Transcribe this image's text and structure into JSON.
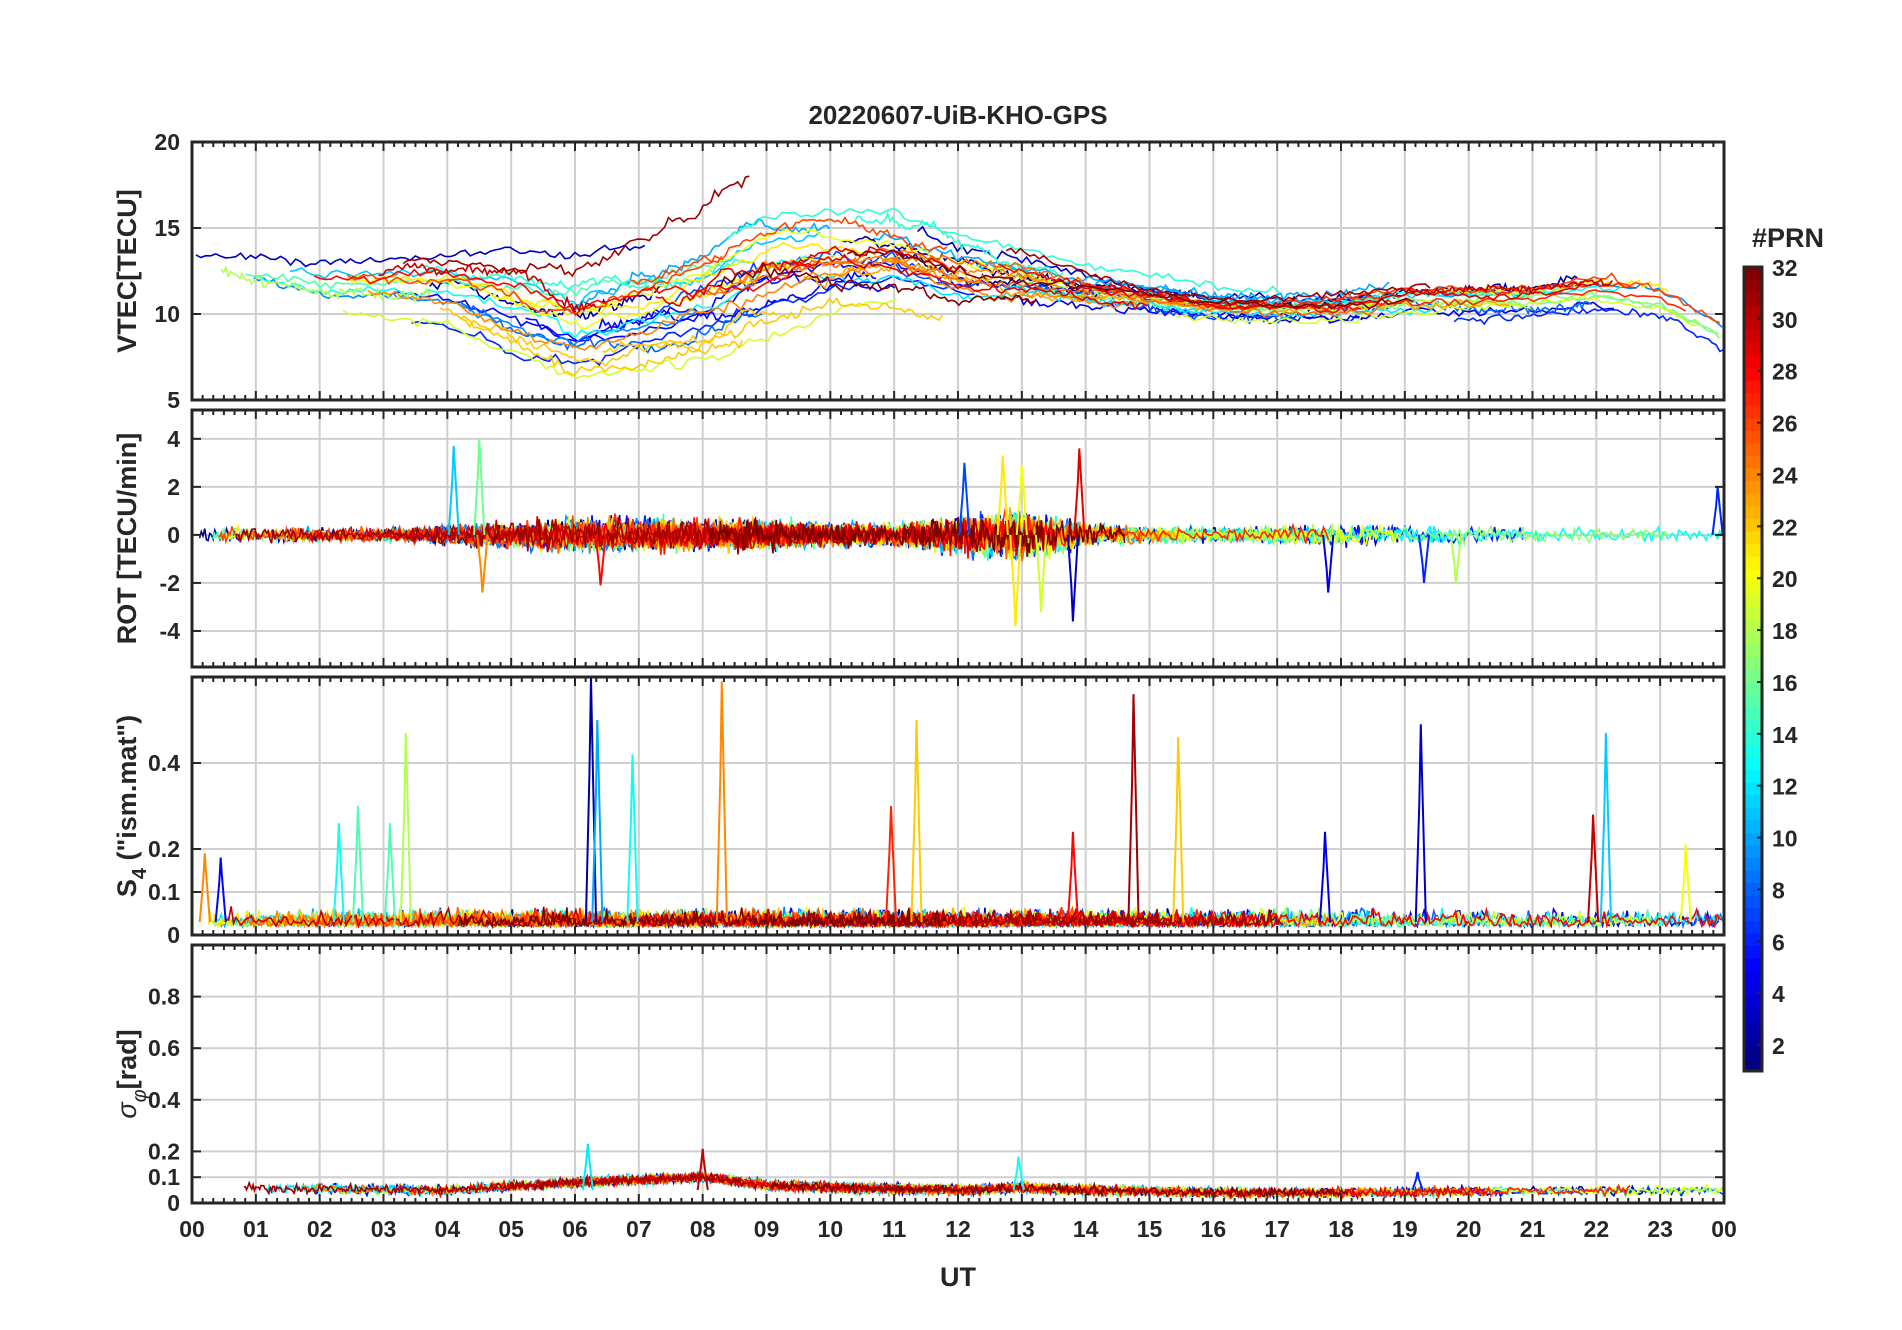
{
  "chart_data": {
    "type": "line",
    "title": "20220607-UiB-KHO-GPS",
    "xlabel": "UT",
    "x_tick_labels": [
      "00",
      "01",
      "02",
      "03",
      "04",
      "05",
      "06",
      "07",
      "08",
      "09",
      "10",
      "11",
      "12",
      "13",
      "14",
      "15",
      "16",
      "17",
      "18",
      "19",
      "20",
      "21",
      "22",
      "23",
      "00"
    ],
    "xlim_hours": [
      0,
      24
    ],
    "panels": [
      {
        "name": "vtec",
        "ylabel": "VTEC[TECU]",
        "ylim": [
          5,
          20
        ],
        "yticks": [
          5,
          10,
          15,
          20
        ],
        "ytick_labels": [
          "5",
          "10",
          "15",
          "20"
        ],
        "series_profile": {
          "times_h": [
            0,
            2,
            4,
            5,
            6,
            7,
            8,
            9,
            10,
            11,
            12,
            13,
            14,
            15,
            16,
            17,
            18,
            19,
            20,
            21,
            22,
            23,
            24
          ],
          "level": [
            12.5,
            11.5,
            11.5,
            10.5,
            9.5,
            10.5,
            11.5,
            13,
            13.5,
            13.5,
            12.5,
            12,
            11.5,
            11,
            10.5,
            10.5,
            10.5,
            11,
            11,
            11,
            11.5,
            11,
            9
          ],
          "spread": [
            1.5,
            2,
            2,
            3,
            3.5,
            4,
            4,
            4,
            3.5,
            3,
            2.5,
            2,
            1.5,
            1.2,
            1,
            1,
            1.2,
            1.3,
            1.2,
            1,
            1.2,
            1.2,
            1.2
          ],
          "noise": 0.5
        }
      },
      {
        "name": "rot",
        "ylabel": "ROT [TECU/min]",
        "ylim": [
          -5.5,
          5.2
        ],
        "yticks": [
          -4,
          -2,
          0,
          2,
          4
        ],
        "ytick_labels": [
          "-4",
          "-2",
          "0",
          "2",
          "4"
        ],
        "series_profile": {
          "times_h": [
            0,
            3,
            6,
            9,
            11,
            12,
            13,
            14,
            15,
            16,
            18,
            20,
            22,
            24
          ],
          "amplitude": [
            0.4,
            0.3,
            0.8,
            0.7,
            0.5,
            0.9,
            1.2,
            0.5,
            0.4,
            0.3,
            0.5,
            0.4,
            0.3,
            0.3
          ],
          "spikes": [
            {
              "t": 4.1,
              "v": 3.7,
              "prn": 11
            },
            {
              "t": 4.5,
              "v": 4.0,
              "prn": 16
            },
            {
              "t": 4.55,
              "v": -2.4,
              "prn": 24
            },
            {
              "t": 6.4,
              "v": -2.1,
              "prn": 28
            },
            {
              "t": 12.1,
              "v": 3.0,
              "prn": 7
            },
            {
              "t": 12.7,
              "v": 3.3,
              "prn": 21
            },
            {
              "t": 12.9,
              "v": -3.8,
              "prn": 21
            },
            {
              "t": 13.0,
              "v": 2.9,
              "prn": 20
            },
            {
              "t": 13.3,
              "v": -3.2,
              "prn": 19
            },
            {
              "t": 13.8,
              "v": -3.6,
              "prn": 3
            },
            {
              "t": 13.9,
              "v": 3.6,
              "prn": 29
            },
            {
              "t": 17.8,
              "v": -2.4,
              "prn": 4
            },
            {
              "t": 19.3,
              "v": -2.0,
              "prn": 6
            },
            {
              "t": 19.8,
              "v": -2.0,
              "prn": 18
            },
            {
              "t": 23.9,
              "v": 2.0,
              "prn": 6
            }
          ]
        }
      },
      {
        "name": "s4",
        "ylabel": "S4 (\"ism.mat\")",
        "ylabel_parts": [
          "S",
          "4",
          " (\"ism.mat\")"
        ],
        "ylim": [
          0,
          0.6
        ],
        "yticks": [
          0,
          0.1,
          0.2,
          0.4
        ],
        "ytick_labels": [
          "0",
          "0.1",
          "0.2",
          "0.4"
        ],
        "series_profile": {
          "baseline": 0.03,
          "noise": 0.035,
          "spikes": [
            {
              "t": 0.2,
              "v": 0.19,
              "prn": 24
            },
            {
              "t": 0.45,
              "v": 0.18,
              "prn": 5
            },
            {
              "t": 2.3,
              "v": 0.26,
              "prn": 13
            },
            {
              "t": 2.6,
              "v": 0.3,
              "prn": 15
            },
            {
              "t": 3.1,
              "v": 0.26,
              "prn": 15
            },
            {
              "t": 3.35,
              "v": 0.47,
              "prn": 18
            },
            {
              "t": 6.25,
              "v": 0.6,
              "prn": 2
            },
            {
              "t": 6.35,
              "v": 0.5,
              "prn": 10
            },
            {
              "t": 6.9,
              "v": 0.42,
              "prn": 13
            },
            {
              "t": 8.3,
              "v": 0.59,
              "prn": 24
            },
            {
              "t": 10.95,
              "v": 0.3,
              "prn": 27
            },
            {
              "t": 11.35,
              "v": 0.5,
              "prn": 22
            },
            {
              "t": 13.8,
              "v": 0.24,
              "prn": 28
            },
            {
              "t": 14.75,
              "v": 0.56,
              "prn": 31
            },
            {
              "t": 15.45,
              "v": 0.46,
              "prn": 22
            },
            {
              "t": 17.75,
              "v": 0.24,
              "prn": 4
            },
            {
              "t": 19.25,
              "v": 0.49,
              "prn": 3
            },
            {
              "t": 21.95,
              "v": 0.28,
              "prn": 30
            },
            {
              "t": 22.15,
              "v": 0.47,
              "prn": 11
            },
            {
              "t": 23.4,
              "v": 0.21,
              "prn": 20
            }
          ]
        }
      },
      {
        "name": "sigma_phi",
        "ylabel": "σφ[rad]",
        "ylabel_parts": [
          "σ",
          "φ",
          "[rad]"
        ],
        "ylim": [
          0,
          1
        ],
        "yticks": [
          0,
          0.1,
          0.2,
          0.4,
          0.6,
          0.8
        ],
        "ytick_labels": [
          "0",
          "0.1",
          "0.2",
          "0.4",
          "0.6",
          "0.8"
        ],
        "series_profile": {
          "times_h": [
            0,
            4,
            6,
            7,
            8,
            9,
            10,
            12,
            13,
            14,
            16,
            18,
            20,
            24
          ],
          "baseline": [
            0.06,
            0.05,
            0.08,
            0.09,
            0.1,
            0.07,
            0.06,
            0.05,
            0.06,
            0.05,
            0.04,
            0.04,
            0.045,
            0.05
          ],
          "noise": 0.025,
          "spikes": [
            {
              "t": 6.2,
              "v": 0.23,
              "prn": 12
            },
            {
              "t": 8.0,
              "v": 0.21,
              "prn": 30
            },
            {
              "t": 12.95,
              "v": 0.18,
              "prn": 13
            },
            {
              "t": 19.2,
              "v": 0.12,
              "prn": 6
            }
          ]
        }
      }
    ],
    "colorbar": {
      "title": "#PRN",
      "colormap": "jet",
      "range": [
        1,
        32
      ],
      "tick_labels": [
        "2",
        "4",
        "6",
        "8",
        "10",
        "12",
        "14",
        "16",
        "18",
        "20",
        "22",
        "24",
        "26",
        "28",
        "30",
        "32"
      ]
    },
    "series_count": 32,
    "series_names": [
      "PRN 1",
      "PRN 2",
      "PRN 3",
      "PRN 4",
      "PRN 5",
      "PRN 6",
      "PRN 7",
      "PRN 8",
      "PRN 9",
      "PRN 10",
      "PRN 11",
      "PRN 12",
      "PRN 13",
      "PRN 14",
      "PRN 15",
      "PRN 16",
      "PRN 17",
      "PRN 18",
      "PRN 19",
      "PRN 20",
      "PRN 21",
      "PRN 22",
      "PRN 23",
      "PRN 24",
      "PRN 25",
      "PRN 26",
      "PRN 27",
      "PRN 28",
      "PRN 29",
      "PRN 30",
      "PRN 31",
      "PRN 32"
    ]
  }
}
